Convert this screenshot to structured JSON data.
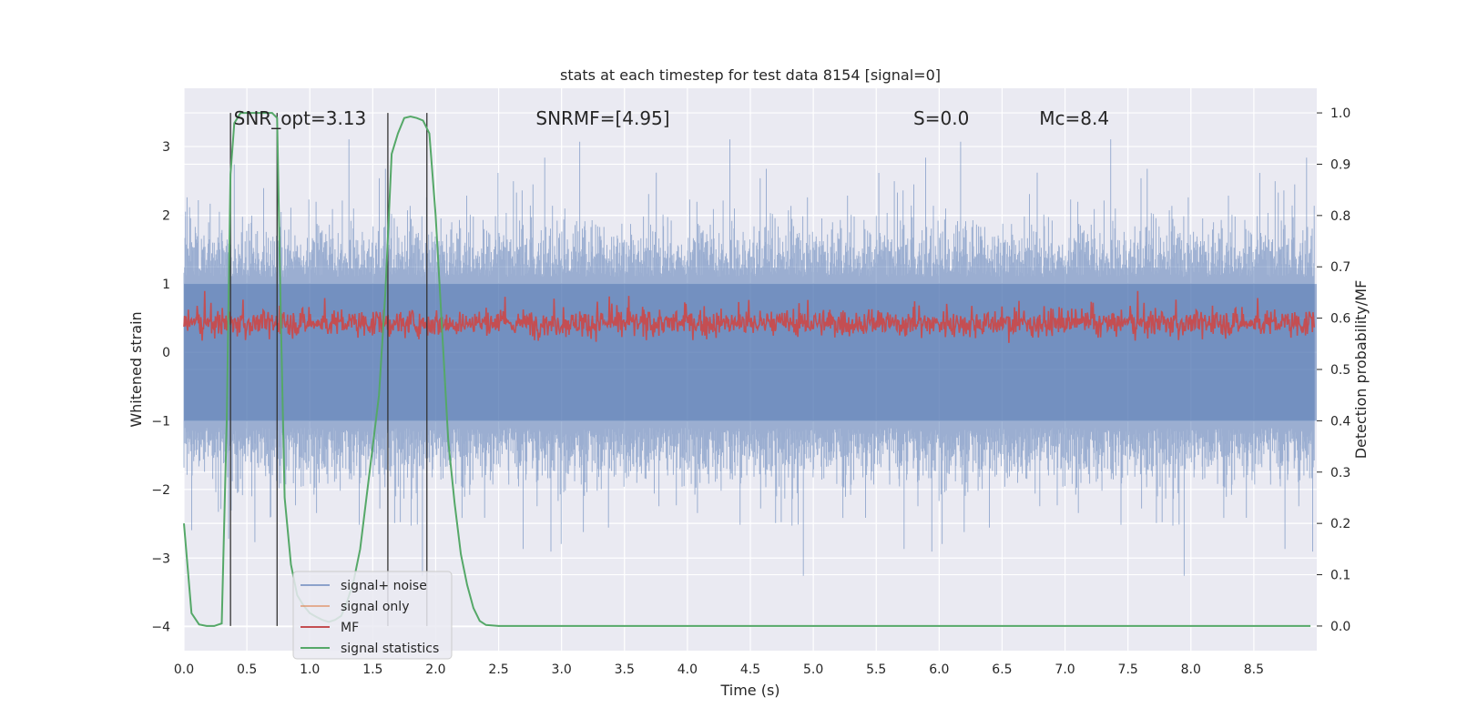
{
  "chart_data": {
    "type": "line",
    "title": "stats at each timestep for test data 8154 [signal=0]",
    "xlabel": "Time (s)",
    "ylabel": "Whitened strain",
    "ylabel_right": "Detection probability/MF",
    "xlim": [
      0.0,
      9.0
    ],
    "ylim": [
      -4.35,
      3.85
    ],
    "ylim_right": [
      -0.048,
      1.048
    ],
    "x_ticks": [
      0.0,
      0.5,
      1.0,
      1.5,
      2.0,
      2.5,
      3.0,
      3.5,
      4.0,
      4.5,
      5.0,
      5.5,
      6.0,
      6.5,
      7.0,
      7.5,
      8.0,
      8.5
    ],
    "x_tick_labels": [
      "0.0",
      "0.5",
      "1.0",
      "1.5",
      "2.0",
      "2.5",
      "3.0",
      "3.5",
      "4.0",
      "4.5",
      "5.0",
      "5.5",
      "6.0",
      "6.5",
      "7.0",
      "7.5",
      "8.0",
      "8.5"
    ],
    "y_ticks": [
      -4,
      -3,
      -2,
      -1,
      0,
      1,
      2,
      3
    ],
    "y_tick_labels": [
      "−4",
      "−3",
      "−2",
      "−1",
      "0",
      "1",
      "2",
      "3"
    ],
    "y_ticks_right": [
      0.0,
      0.1,
      0.2,
      0.3,
      0.4,
      0.5,
      0.6,
      0.7,
      0.8,
      0.9,
      1.0
    ],
    "y_tick_labels_right": [
      "0.0",
      "0.1",
      "0.2",
      "0.3",
      "0.4",
      "0.5",
      "0.6",
      "0.7",
      "0.8",
      "0.9",
      "1.0"
    ],
    "annotations": [
      {
        "text": "SNR_opt=3.13",
        "x": 0.2,
        "y": 3.4
      },
      {
        "text": "SNRMF=[4.95]",
        "x": 2.6,
        "y": 3.4
      },
      {
        "text": "S=0.0",
        "x": 5.6,
        "y": 3.4
      },
      {
        "text": "Mc=8.4",
        "x": 6.6,
        "y": 3.4
      }
    ],
    "vertical_lines": [
      0.37,
      0.74,
      1.62,
      1.93
    ],
    "colors": {
      "signal_noise": "#4c72b0",
      "signal_only": "#dd8452",
      "mf": "#c44e52",
      "signal_statistics": "#55a868",
      "vlines": "#333333",
      "background": "#eaeaf2",
      "grid": "#ffffff"
    },
    "series": [
      {
        "name": "signal+ noise",
        "axis": "left",
        "description": "noisy whitened strain",
        "envelope": [
          -1.8,
          1.8
        ]
      },
      {
        "name": "signal only",
        "axis": "left",
        "values": []
      },
      {
        "name": "MF",
        "axis": "right",
        "description": "matched-filter output",
        "band": [
          0.55,
          0.64
        ]
      },
      {
        "name": "signal statistics",
        "axis": "right",
        "x": [
          0.0,
          0.06,
          0.12,
          0.18,
          0.24,
          0.3,
          0.34,
          0.37,
          0.4,
          0.45,
          0.5,
          0.55,
          0.6,
          0.65,
          0.7,
          0.74,
          0.77,
          0.8,
          0.85,
          0.9,
          0.95,
          1.0,
          1.05,
          1.1,
          1.15,
          1.2,
          1.25,
          1.3,
          1.35,
          1.4,
          1.45,
          1.5,
          1.55,
          1.6,
          1.65,
          1.7,
          1.75,
          1.8,
          1.85,
          1.9,
          1.95,
          2.0,
          2.05,
          2.1,
          2.15,
          2.2,
          2.25,
          2.3,
          2.35,
          2.4,
          2.5,
          3.0,
          4.0,
          5.0,
          6.0,
          7.0,
          8.0,
          8.95
        ],
        "values": [
          0.2,
          0.025,
          0.003,
          0.0,
          0.0,
          0.005,
          0.4,
          0.88,
          0.98,
          1.0,
          1.0,
          1.0,
          1.0,
          1.0,
          1.0,
          0.99,
          0.6,
          0.25,
          0.12,
          0.06,
          0.04,
          0.025,
          0.018,
          0.012,
          0.008,
          0.012,
          0.02,
          0.05,
          0.09,
          0.15,
          0.25,
          0.35,
          0.45,
          0.65,
          0.92,
          0.96,
          0.99,
          0.993,
          0.99,
          0.985,
          0.96,
          0.8,
          0.58,
          0.36,
          0.24,
          0.14,
          0.08,
          0.035,
          0.01,
          0.002,
          0.0,
          0.0,
          0.0,
          0.0,
          0.0,
          0.0,
          0.0,
          0.0
        ]
      }
    ],
    "legend": {
      "position": "lower-left",
      "entries": [
        "signal+ noise",
        "signal only",
        "MF",
        "signal statistics"
      ]
    },
    "grid": true
  }
}
